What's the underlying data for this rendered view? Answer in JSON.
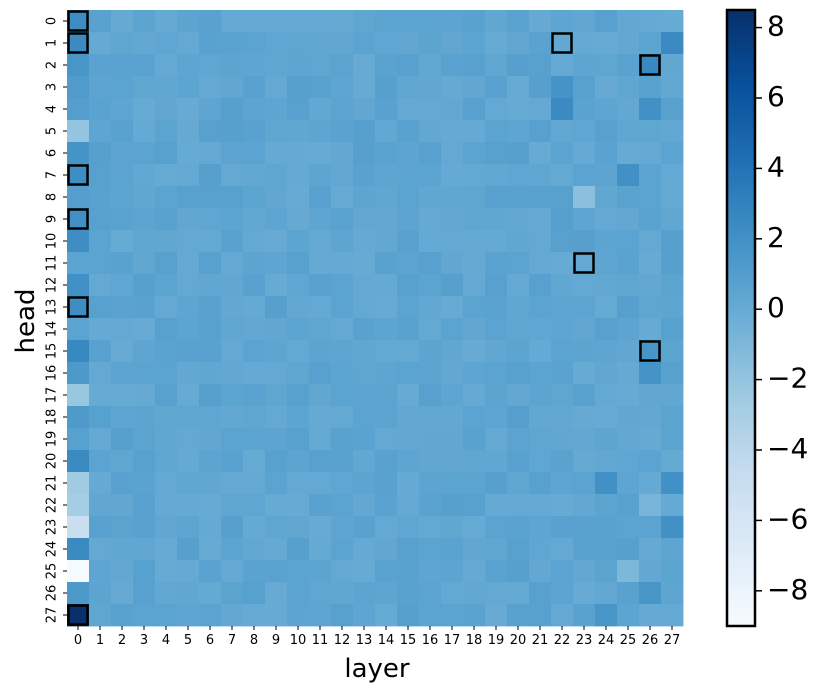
{
  "chart_data": {
    "type": "heatmap",
    "title": "",
    "xlabel": "layer",
    "ylabel": "head",
    "x_categories": [
      "0",
      "1",
      "2",
      "3",
      "4",
      "5",
      "6",
      "7",
      "8",
      "9",
      "10",
      "11",
      "12",
      "13",
      "14",
      "15",
      "16",
      "17",
      "18",
      "19",
      "20",
      "21",
      "22",
      "23",
      "24",
      "25",
      "26",
      "27"
    ],
    "y_categories": [
      "0",
      "1",
      "2",
      "3",
      "4",
      "5",
      "6",
      "7",
      "8",
      "9",
      "10",
      "11",
      "12",
      "13",
      "14",
      "15",
      "16",
      "17",
      "18",
      "19",
      "20",
      "21",
      "22",
      "23",
      "24",
      "25",
      "26",
      "27"
    ],
    "colorbar": {
      "range": [
        -9,
        8.5
      ],
      "ticks": [
        "8",
        "6",
        "4",
        "2",
        "0",
        "−2",
        "−4",
        "−6",
        "−8"
      ],
      "tick_values": [
        8,
        6,
        4,
        2,
        0,
        -2,
        -4,
        -6,
        -8
      ],
      "colormap": "Blues"
    },
    "first_column_values": [
      2.3,
      2.4,
      1.6,
      1.2,
      1.0,
      -2.0,
      1.8,
      2.2,
      1.0,
      2.1,
      2.2,
      0.6,
      2.0,
      2.2,
      0.6,
      2.6,
      1.4,
      -2.2,
      1.3,
      0.8,
      2.4,
      -2.6,
      -2.8,
      -5.0,
      2.4,
      -8.8,
      1.4,
      8.5
    ],
    "notable_cells": [
      {
        "head": 2,
        "layer": 26,
        "value": 2.6
      },
      {
        "head": 1,
        "layer": 27,
        "value": 2.4
      },
      {
        "head": 3,
        "layer": 22,
        "value": 1.8
      },
      {
        "head": 4,
        "layer": 22,
        "value": 2.4
      },
      {
        "head": 4,
        "layer": 26,
        "value": 2.0
      },
      {
        "head": 7,
        "layer": 25,
        "value": 2.0
      },
      {
        "head": 8,
        "layer": 23,
        "value": -1.6
      },
      {
        "head": 15,
        "layer": 26,
        "value": 1.6
      },
      {
        "head": 16,
        "layer": 26,
        "value": 1.8
      },
      {
        "head": 21,
        "layer": 24,
        "value": 2.0
      },
      {
        "head": 21,
        "layer": 27,
        "value": 2.0
      },
      {
        "head": 22,
        "layer": 26,
        "value": -0.8
      },
      {
        "head": 23,
        "layer": 27,
        "value": 2.0
      },
      {
        "head": 25,
        "layer": 25,
        "value": -1.0
      },
      {
        "head": 26,
        "layer": 26,
        "value": 1.6
      },
      {
        "head": 27,
        "layer": 24,
        "value": 1.6
      }
    ],
    "background_value": 0.4,
    "highlighted_cells": [
      {
        "head": 0,
        "layer": 0
      },
      {
        "head": 1,
        "layer": 0
      },
      {
        "head": 7,
        "layer": 0
      },
      {
        "head": 9,
        "layer": 0
      },
      {
        "head": 13,
        "layer": 0
      },
      {
        "head": 27,
        "layer": 0
      },
      {
        "head": 1,
        "layer": 22
      },
      {
        "head": 2,
        "layer": 26
      },
      {
        "head": 11,
        "layer": 23
      },
      {
        "head": 15,
        "layer": 26
      }
    ]
  }
}
